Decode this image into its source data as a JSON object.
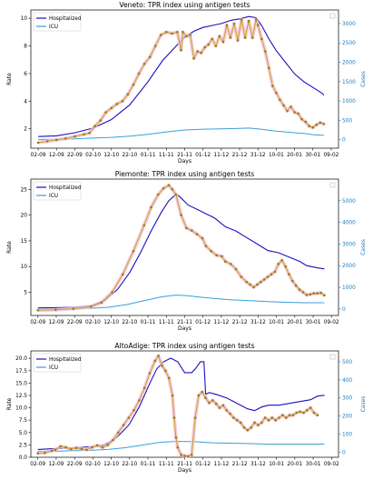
{
  "chart_data": [
    {
      "type": "line",
      "title": "Veneto: TPR index using antigen tests",
      "xlabel": "Days",
      "ylabel": "Rate",
      "y2label": "Cases",
      "x_ticks": [
        "02-09",
        "12-09",
        "22-09",
        "02-10",
        "12-10",
        "22-10",
        "01-11",
        "11-11",
        "21-11",
        "01-12",
        "11-12",
        "21-12",
        "31-12",
        "10-01",
        "20-01",
        "30-01",
        "09-02"
      ],
      "ylim": [
        0.6,
        10.6
      ],
      "y_ticks": [
        2,
        4,
        6,
        8,
        10
      ],
      "y2lim": [
        -220,
        3350
      ],
      "y2_ticks": [
        0,
        500,
        1000,
        1500,
        2000,
        2500,
        3000
      ],
      "legend": {
        "position": "top-left",
        "entries": [
          "Hospitalized",
          "ICU"
        ]
      },
      "colors": {
        "rate": "#c8a02a",
        "hospitalized": "#1a0fbf",
        "icu": "#3aa0d8",
        "axis2": "#1f77b4"
      },
      "rate_points": [
        [
          0,
          1.0
        ],
        [
          5,
          1.1
        ],
        [
          10,
          1.2
        ],
        [
          15,
          1.3
        ],
        [
          20,
          1.45
        ],
        [
          25,
          1.6
        ],
        [
          28,
          1.7
        ],
        [
          31,
          2.2
        ],
        [
          34,
          2.6
        ],
        [
          37,
          3.2
        ],
        [
          40,
          3.5
        ],
        [
          43,
          3.8
        ],
        [
          46,
          4.0
        ],
        [
          49,
          4.5
        ],
        [
          52,
          5.2
        ],
        [
          55,
          6.0
        ],
        [
          58,
          6.7
        ],
        [
          61,
          7.2
        ],
        [
          64,
          8.0
        ],
        [
          67,
          8.8
        ],
        [
          70,
          9.0
        ],
        [
          73,
          8.9
        ],
        [
          76,
          9.0
        ],
        [
          78,
          7.7
        ],
        [
          79,
          9.0
        ],
        [
          81,
          8.7
        ],
        [
          83,
          8.8
        ],
        [
          85,
          7.1
        ],
        [
          87,
          7.6
        ],
        [
          89,
          7.5
        ],
        [
          91,
          7.9
        ],
        [
          93,
          8.1
        ],
        [
          95,
          8.5
        ],
        [
          97,
          8.0
        ],
        [
          99,
          8.7
        ],
        [
          101,
          8.3
        ],
        [
          103,
          9.5
        ],
        [
          105,
          8.6
        ],
        [
          107,
          9.6
        ],
        [
          109,
          8.4
        ],
        [
          111,
          9.9
        ],
        [
          113,
          8.6
        ],
        [
          115,
          9.8
        ],
        [
          117,
          8.6
        ],
        [
          119,
          9.9
        ],
        [
          120,
          9.5
        ],
        [
          122,
          8.5
        ],
        [
          124,
          7.6
        ],
        [
          126,
          6.4
        ],
        [
          128,
          5.1
        ],
        [
          130,
          4.6
        ],
        [
          132,
          4.1
        ],
        [
          134,
          3.7
        ],
        [
          136,
          3.3
        ],
        [
          138,
          3.6
        ],
        [
          140,
          3.2
        ],
        [
          142,
          3.1
        ],
        [
          144,
          2.7
        ],
        [
          146,
          2.5
        ],
        [
          148,
          2.2
        ],
        [
          150,
          2.1
        ],
        [
          152,
          2.3
        ],
        [
          154,
          2.45
        ],
        [
          156,
          2.35
        ]
      ],
      "hospitalized": [
        [
          0,
          80
        ],
        [
          10,
          100
        ],
        [
          20,
          180
        ],
        [
          30,
          300
        ],
        [
          40,
          520
        ],
        [
          50,
          900
        ],
        [
          60,
          1500
        ],
        [
          68,
          2050
        ],
        [
          75,
          2400
        ],
        [
          80,
          2650
        ],
        [
          85,
          2800
        ],
        [
          90,
          2900
        ],
        [
          95,
          2950
        ],
        [
          100,
          3000
        ],
        [
          105,
          3080
        ],
        [
          110,
          3120
        ],
        [
          115,
          3180
        ],
        [
          119,
          3150
        ],
        [
          122,
          2950
        ],
        [
          126,
          2600
        ],
        [
          130,
          2300
        ],
        [
          135,
          2000
        ],
        [
          140,
          1700
        ],
        [
          145,
          1500
        ],
        [
          150,
          1350
        ],
        [
          155,
          1200
        ],
        [
          156,
          1150
        ]
      ],
      "icu": [
        [
          0,
          5
        ],
        [
          10,
          10
        ],
        [
          20,
          20
        ],
        [
          30,
          40
        ],
        [
          40,
          60
        ],
        [
          50,
          90
        ],
        [
          60,
          140
        ],
        [
          70,
          200
        ],
        [
          80,
          250
        ],
        [
          90,
          270
        ],
        [
          100,
          280
        ],
        [
          110,
          290
        ],
        [
          115,
          300
        ],
        [
          120,
          280
        ],
        [
          125,
          250
        ],
        [
          130,
          220
        ],
        [
          135,
          200
        ],
        [
          140,
          180
        ],
        [
          145,
          160
        ],
        [
          150,
          130
        ],
        [
          156,
          110
        ]
      ]
    },
    {
      "type": "line",
      "title": "Piemonte: TPR index using antigen tests",
      "xlabel": "Days",
      "ylabel": "Rate",
      "y2label": "Cases",
      "x_ticks": [
        "02-09",
        "12-09",
        "22-09",
        "02-10",
        "12-10",
        "22-10",
        "01-11",
        "11-11",
        "21-11",
        "01-12",
        "11-12",
        "21-12",
        "31-12",
        "10-01",
        "20-01",
        "30-01",
        "09-02"
      ],
      "ylim": [
        0.5,
        27
      ],
      "y_ticks": [
        5,
        10,
        15,
        20,
        25
      ],
      "y2lim": [
        -300,
        6000
      ],
      "y2_ticks": [
        0,
        1000,
        2000,
        3000,
        4000,
        5000
      ],
      "legend": {
        "position": "top-left",
        "entries": [
          "Hospitalized",
          "ICU"
        ]
      },
      "colors": {
        "rate": "#c8a02a",
        "hospitalized": "#1a0fbf",
        "icu": "#3aa0d8",
        "axis2": "#1f77b4"
      },
      "rate_points": [
        [
          0,
          1.5
        ],
        [
          10,
          1.6
        ],
        [
          20,
          1.8
        ],
        [
          30,
          2.2
        ],
        [
          36,
          3.0
        ],
        [
          42,
          5.0
        ],
        [
          48,
          8.5
        ],
        [
          54,
          13.0
        ],
        [
          60,
          18.0
        ],
        [
          64,
          21.5
        ],
        [
          68,
          24.0
        ],
        [
          71,
          25.2
        ],
        [
          74,
          25.8
        ],
        [
          76,
          25.0
        ],
        [
          78,
          24.0
        ],
        [
          81,
          20.0
        ],
        [
          84,
          17.5
        ],
        [
          87,
          17.0
        ],
        [
          90,
          16.3
        ],
        [
          93,
          15.5
        ],
        [
          95,
          14.0
        ],
        [
          98,
          13.0
        ],
        [
          101,
          12.2
        ],
        [
          104,
          12.0
        ],
        [
          106,
          11.0
        ],
        [
          109,
          10.5
        ],
        [
          112,
          9.5
        ],
        [
          115,
          8.0
        ],
        [
          118,
          7.0
        ],
        [
          120,
          6.5
        ],
        [
          122,
          6.0
        ],
        [
          124,
          6.5
        ],
        [
          126,
          7.0
        ],
        [
          128,
          7.5
        ],
        [
          130,
          8.0
        ],
        [
          132,
          8.5
        ],
        [
          134,
          9.0
        ],
        [
          136,
          10.5
        ],
        [
          138,
          11.2
        ],
        [
          140,
          10.0
        ],
        [
          142,
          8.5
        ],
        [
          144,
          7.2
        ],
        [
          146,
          6.3
        ],
        [
          148,
          5.5
        ],
        [
          150,
          5.0
        ],
        [
          152,
          4.5
        ],
        [
          154,
          4.6
        ],
        [
          156,
          4.8
        ],
        [
          158,
          4.8
        ],
        [
          160,
          4.9
        ],
        [
          162,
          4.4
        ]
      ],
      "hospitalized": [
        [
          0,
          50
        ],
        [
          10,
          60
        ],
        [
          20,
          80
        ],
        [
          30,
          150
        ],
        [
          38,
          400
        ],
        [
          45,
          900
        ],
        [
          52,
          1700
        ],
        [
          58,
          2600
        ],
        [
          64,
          3600
        ],
        [
          70,
          4500
        ],
        [
          74,
          5000
        ],
        [
          78,
          5300
        ],
        [
          80,
          5200
        ],
        [
          85,
          4800
        ],
        [
          90,
          4600
        ],
        [
          95,
          4400
        ],
        [
          100,
          4200
        ],
        [
          106,
          3800
        ],
        [
          112,
          3600
        ],
        [
          118,
          3300
        ],
        [
          124,
          3000
        ],
        [
          130,
          2700
        ],
        [
          136,
          2600
        ],
        [
          142,
          2400
        ],
        [
          148,
          2200
        ],
        [
          152,
          2000
        ],
        [
          158,
          1900
        ],
        [
          162,
          1850
        ]
      ],
      "icu": [
        [
          0,
          5
        ],
        [
          10,
          10
        ],
        [
          20,
          15
        ],
        [
          30,
          30
        ],
        [
          40,
          80
        ],
        [
          50,
          200
        ],
        [
          60,
          380
        ],
        [
          70,
          560
        ],
        [
          78,
          640
        ],
        [
          84,
          620
        ],
        [
          90,
          560
        ],
        [
          100,
          480
        ],
        [
          110,
          420
        ],
        [
          120,
          380
        ],
        [
          130,
          340
        ],
        [
          140,
          310
        ],
        [
          150,
          290
        ],
        [
          162,
          290
        ]
      ]
    },
    {
      "type": "line",
      "title": "AltoAdige: TPR index using antigen tests",
      "xlabel": "Days",
      "ylabel": "Rate",
      "y2label": "Cases",
      "x_ticks": [
        "02-09",
        "12-09",
        "22-09",
        "02-10",
        "12-10",
        "22-10",
        "01-11",
        "11-11",
        "21-11",
        "01-12",
        "11-12",
        "21-12",
        "31-12",
        "10-01",
        "20-01",
        "30-01",
        "09-02"
      ],
      "ylim": [
        0,
        21.5
      ],
      "y_ticks": [
        0.0,
        2.5,
        5.0,
        7.5,
        10.0,
        12.5,
        15.0,
        17.5,
        20.0
      ],
      "y2lim": [
        -28,
        560
      ],
      "y2_ticks": [
        0,
        100,
        200,
        300,
        400,
        500
      ],
      "legend": {
        "position": "top-left",
        "entries": [
          "Hospitalized",
          "ICU"
        ]
      },
      "colors": {
        "rate": "#c8a02a",
        "hospitalized": "#1a0fbf",
        "icu": "#3aa0d8",
        "axis2": "#1f77b4"
      },
      "rate_points": [
        [
          0,
          0.8
        ],
        [
          4,
          0.9
        ],
        [
          8,
          1.3
        ],
        [
          10,
          1.5
        ],
        [
          13,
          2.2
        ],
        [
          16,
          2.0
        ],
        [
          19,
          1.6
        ],
        [
          22,
          1.9
        ],
        [
          25,
          1.7
        ],
        [
          28,
          1.5
        ],
        [
          31,
          2.0
        ],
        [
          34,
          2.4
        ],
        [
          37,
          2.0
        ],
        [
          40,
          2.5
        ],
        [
          43,
          3.5
        ],
        [
          46,
          5.0
        ],
        [
          49,
          6.5
        ],
        [
          52,
          8.0
        ],
        [
          55,
          9.5
        ],
        [
          58,
          11.5
        ],
        [
          61,
          14.0
        ],
        [
          64,
          17.0
        ],
        [
          67,
          19.5
        ],
        [
          69,
          20.5
        ],
        [
          71,
          18.5
        ],
        [
          73,
          17.5
        ],
        [
          75,
          16.0
        ],
        [
          77,
          12.5
        ],
        [
          78,
          8.0
        ],
        [
          79,
          4.0
        ],
        [
          80,
          2.0
        ],
        [
          82,
          0.5
        ],
        [
          84,
          0.3
        ],
        [
          86,
          0.2
        ],
        [
          88,
          0.5
        ],
        [
          90,
          8.0
        ],
        [
          92,
          12.5
        ],
        [
          94,
          13.2
        ],
        [
          96,
          12.0
        ],
        [
          98,
          11.0
        ],
        [
          100,
          11.5
        ],
        [
          102,
          10.8
        ],
        [
          104,
          10.0
        ],
        [
          106,
          10.5
        ],
        [
          108,
          9.5
        ],
        [
          110,
          8.8
        ],
        [
          112,
          8.0
        ],
        [
          114,
          7.5
        ],
        [
          116,
          7.0
        ],
        [
          118,
          6.0
        ],
        [
          120,
          5.5
        ],
        [
          122,
          6.0
        ],
        [
          124,
          7.0
        ],
        [
          126,
          6.5
        ],
        [
          128,
          7.0
        ],
        [
          130,
          8.0
        ],
        [
          132,
          7.5
        ],
        [
          134,
          8.0
        ],
        [
          136,
          7.5
        ],
        [
          138,
          8.0
        ],
        [
          140,
          8.5
        ],
        [
          142,
          8.0
        ],
        [
          144,
          8.5
        ],
        [
          146,
          8.5
        ],
        [
          148,
          9.0
        ],
        [
          150,
          9.2
        ],
        [
          152,
          9.0
        ],
        [
          154,
          9.5
        ],
        [
          156,
          10.0
        ],
        [
          158,
          9.0
        ],
        [
          160,
          8.5
        ]
      ],
      "hospitalized": [
        [
          0,
          15
        ],
        [
          10,
          20
        ],
        [
          20,
          25
        ],
        [
          30,
          30
        ],
        [
          38,
          40
        ],
        [
          45,
          80
        ],
        [
          52,
          150
        ],
        [
          58,
          250
        ],
        [
          64,
          380
        ],
        [
          68,
          460
        ],
        [
          72,
          500
        ],
        [
          76,
          520
        ],
        [
          80,
          500
        ],
        [
          84,
          440
        ],
        [
          88,
          440
        ],
        [
          90,
          460
        ],
        [
          93,
          500
        ],
        [
          95,
          500
        ],
        [
          96,
          320
        ],
        [
          98,
          330
        ],
        [
          102,
          320
        ],
        [
          108,
          300
        ],
        [
          114,
          270
        ],
        [
          120,
          240
        ],
        [
          124,
          230
        ],
        [
          128,
          250
        ],
        [
          132,
          260
        ],
        [
          138,
          260
        ],
        [
          144,
          270
        ],
        [
          150,
          280
        ],
        [
          156,
          290
        ],
        [
          160,
          310
        ],
        [
          164,
          315
        ]
      ],
      "icu": [
        [
          0,
          5
        ],
        [
          10,
          5
        ],
        [
          20,
          8
        ],
        [
          30,
          10
        ],
        [
          40,
          15
        ],
        [
          50,
          25
        ],
        [
          60,
          40
        ],
        [
          70,
          55
        ],
        [
          80,
          60
        ],
        [
          90,
          58
        ],
        [
          100,
          52
        ],
        [
          110,
          50
        ],
        [
          120,
          48
        ],
        [
          130,
          45
        ],
        [
          140,
          45
        ],
        [
          150,
          45
        ],
        [
          160,
          45
        ],
        [
          164,
          45
        ]
      ]
    }
  ]
}
